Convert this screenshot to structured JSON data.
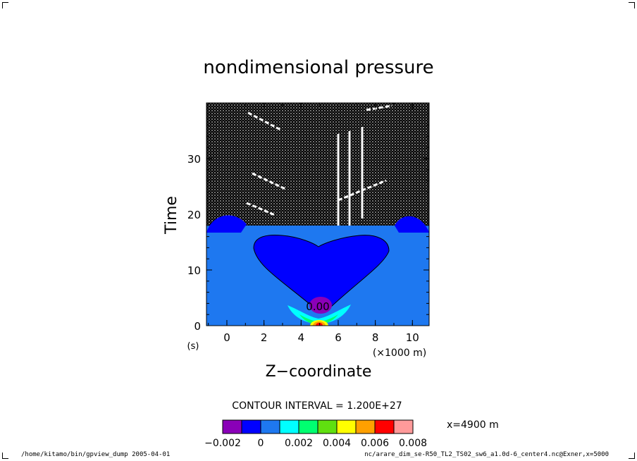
{
  "chart_data": {
    "type": "heatmap",
    "title": "nondimensional pressure",
    "xlabel": "Z−coordinate",
    "xunit": "(×1000 m)",
    "ylabel": "Time",
    "yunit": "(s)",
    "xlim": [
      -1.1,
      10.9
    ],
    "ylim": [
      0,
      40
    ],
    "xticks": [
      0,
      2,
      4,
      6,
      8,
      10
    ],
    "xtick_labels": [
      "0",
      "2",
      "4",
      "6",
      "8",
      "10"
    ],
    "yticks": [
      0,
      10,
      20,
      30
    ],
    "ytick_labels": [
      "0",
      "10",
      "20",
      "30"
    ],
    "contour_interval_text": "CONTOUR INTERVAL =  1.200E+27",
    "contour_label": "0.00",
    "position_text": "x=4900  m",
    "colorbar": {
      "levels": [
        -0.002,
        -0.001,
        0,
        0.001,
        0.002,
        0.003,
        0.004,
        0.005,
        0.006,
        0.007,
        0.008
      ],
      "colors": [
        "#8a00b8",
        "#0000ff",
        "#1e78f0",
        "#00ffff",
        "#00ff70",
        "#60e010",
        "#ffff00",
        "#ffa000",
        "#ff0000",
        "#ff9a9a"
      ],
      "tick_labels": [
        "−0.002",
        "0",
        "0.002",
        "0.004",
        "0.006",
        "0.008"
      ]
    }
  },
  "footer": {
    "left": "/home/kitamo/bin/gpview_dump  2005-04-01",
    "right": "nc/arare_dim_se-R50_TL2_TS02_sw6_a1.0d-6_center4.nc@Exner,x=5000"
  }
}
